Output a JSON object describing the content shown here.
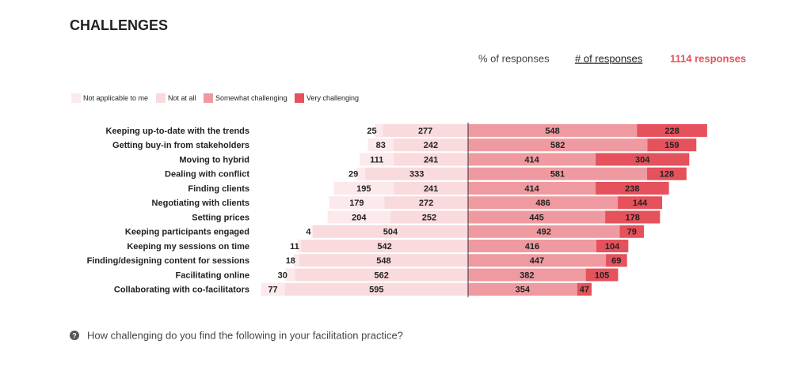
{
  "chart_data": {
    "type": "diverging-bar",
    "title": "CHALLENGES",
    "toggles": [
      "% of responses",
      "# of responses"
    ],
    "total_label": "1114 responses",
    "question": "How challenging do you find the following in your facilitation practice?",
    "categories": [
      "Keeping up-to-date with the trends",
      "Getting buy-in from stakeholders",
      "Moving to hybrid",
      "Dealing with conflict",
      "Finding clients",
      "Negotiating with clients",
      "Setting prices",
      "Keeping participants engaged",
      "Keeping my sessions on time",
      "Finding/designing content for sessions",
      "Facilitating online",
      "Collaborating with co-facilitators"
    ],
    "series": [
      {
        "name": "Not applicable to me",
        "color": "#fce9eb",
        "values": [
          25,
          83,
          111,
          29,
          195,
          179,
          204,
          4,
          11,
          18,
          30,
          77
        ]
      },
      {
        "name": "Not at all",
        "color": "#f9dadd",
        "values": [
          277,
          242,
          241,
          333,
          241,
          272,
          252,
          504,
          542,
          548,
          562,
          595
        ]
      },
      {
        "name": "Somewhat challenging",
        "color": "#ef9aa0",
        "values": [
          548,
          582,
          414,
          581,
          414,
          486,
          445,
          492,
          416,
          447,
          382,
          354
        ]
      },
      {
        "name": "Very challenging",
        "color": "#e5525c",
        "values": [
          228,
          159,
          304,
          128,
          238,
          144,
          178,
          79,
          104,
          69,
          105,
          47
        ]
      }
    ]
  }
}
